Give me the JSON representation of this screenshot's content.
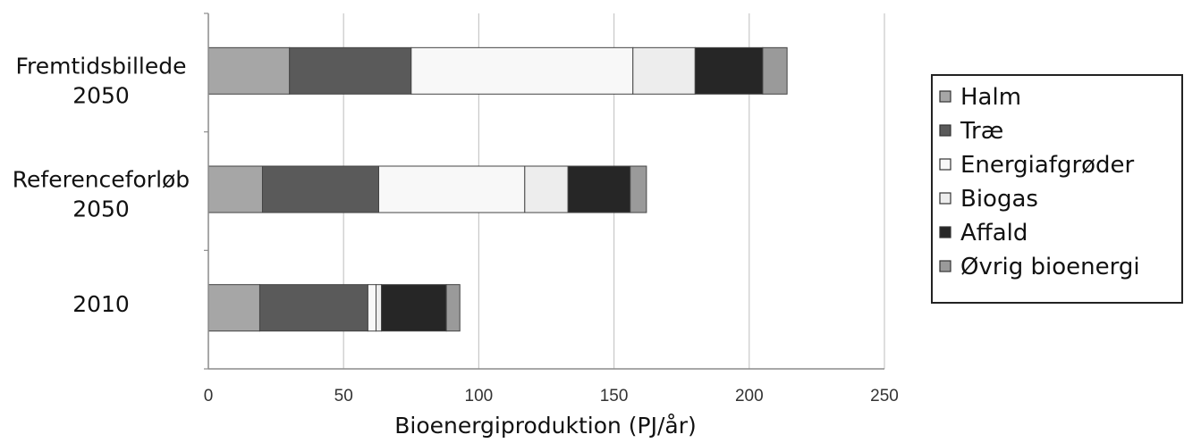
{
  "chart_data": {
    "type": "bar",
    "orientation": "horizontal",
    "stacked": true,
    "categories": [
      [
        "Fremtidsbillede",
        "2050"
      ],
      [
        "Referenceforløb",
        "2050"
      ],
      [
        "2010"
      ]
    ],
    "series": [
      {
        "name": "Halm",
        "values": [
          30,
          20,
          19
        ],
        "color": "#a6a6a6"
      },
      {
        "name": "Træ",
        "values": [
          45,
          43,
          40
        ],
        "color": "#5a5a5a"
      },
      {
        "name": "Energiafgrøder",
        "values": [
          82,
          54,
          3
        ],
        "color": "#f8f8f8"
      },
      {
        "name": "Biogas",
        "values": [
          23,
          16,
          2
        ],
        "color": "#ededed"
      },
      {
        "name": "Affald",
        "values": [
          25,
          23,
          24
        ],
        "color": "#262626"
      },
      {
        "name": "Øvrig bioenergi",
        "values": [
          9,
          6,
          5
        ],
        "color": "#9a9a9a"
      }
    ],
    "xlabel": "Bioenergiproduktion (PJ/år)",
    "xlim": [
      0,
      250
    ],
    "xticks": [
      0,
      50,
      100,
      150,
      200,
      250
    ],
    "grid": true,
    "legend_position": "right"
  }
}
